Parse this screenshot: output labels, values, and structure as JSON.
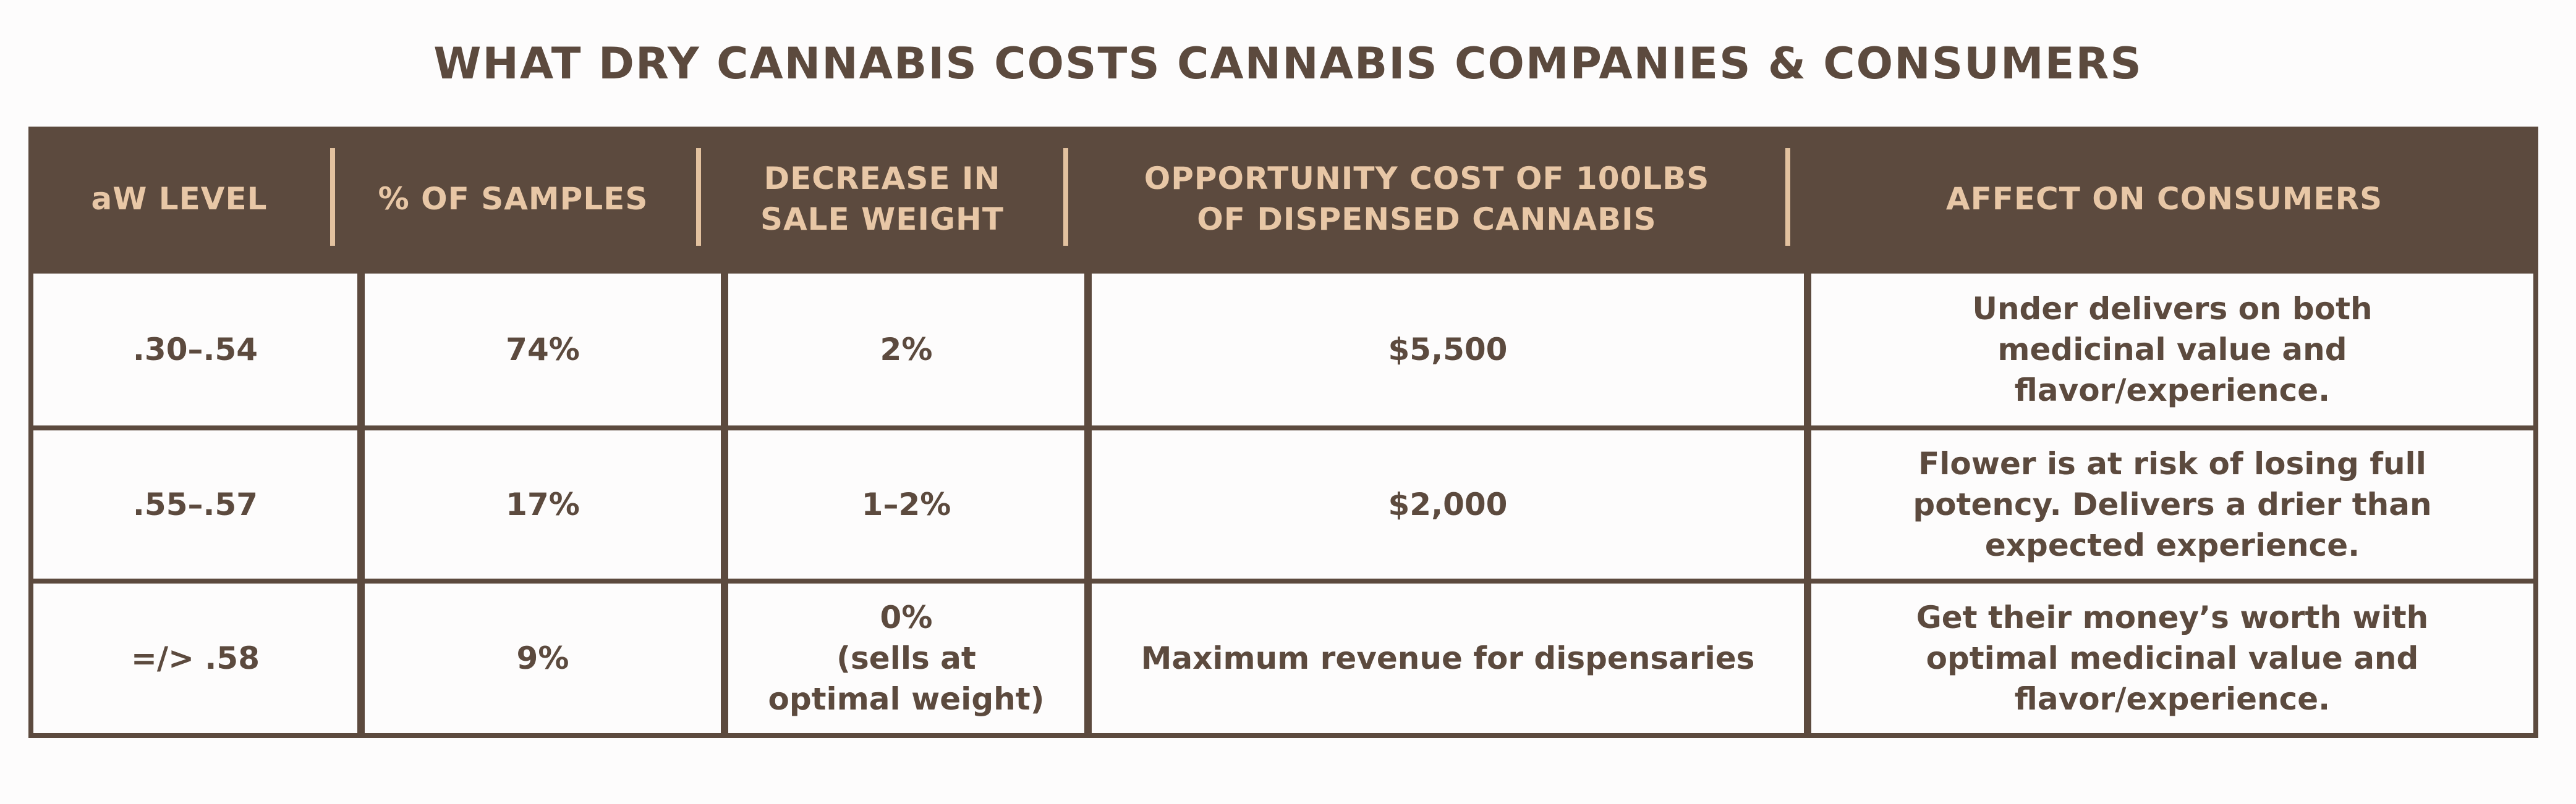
{
  "title": "WHAT DRY CANNABIS COSTS CANNABIS COMPANIES  & CONSUMERS",
  "colors": {
    "brown": "#5c4a3e",
    "header_text": "#e8c7a6",
    "separator": "#e3c29f",
    "cell_bg": "#fdfcfc"
  },
  "chart_data": {
    "type": "table",
    "title": "WHAT DRY CANNABIS COSTS CANNABIS COMPANIES  & CONSUMERS",
    "columns": [
      "aW LEVEL",
      "% OF SAMPLES",
      "DECREASE IN\nSALE WEIGHT",
      "OPPORTUNITY COST OF 100LBS\nOF DISPENSED CANNABIS",
      "AFFECT ON CONSUMERS"
    ],
    "rows": [
      [
        ".30–.54",
        "74%",
        "2%",
        "$5,500",
        "Under delivers on both\nmedicinal value and\nflavor/experience."
      ],
      [
        ".55–.57",
        "17%",
        "1–2%",
        "$2,000",
        "Flower is at risk of losing full\npotency. Delivers a drier than\nexpected experience."
      ],
      [
        "=/> .58",
        "9%",
        "0%\n(sells at\noptimal weight)",
        "Maximum revenue for dispensaries",
        "Get their money’s worth with\noptimal medicinal value and\nflavor/experience."
      ]
    ]
  }
}
